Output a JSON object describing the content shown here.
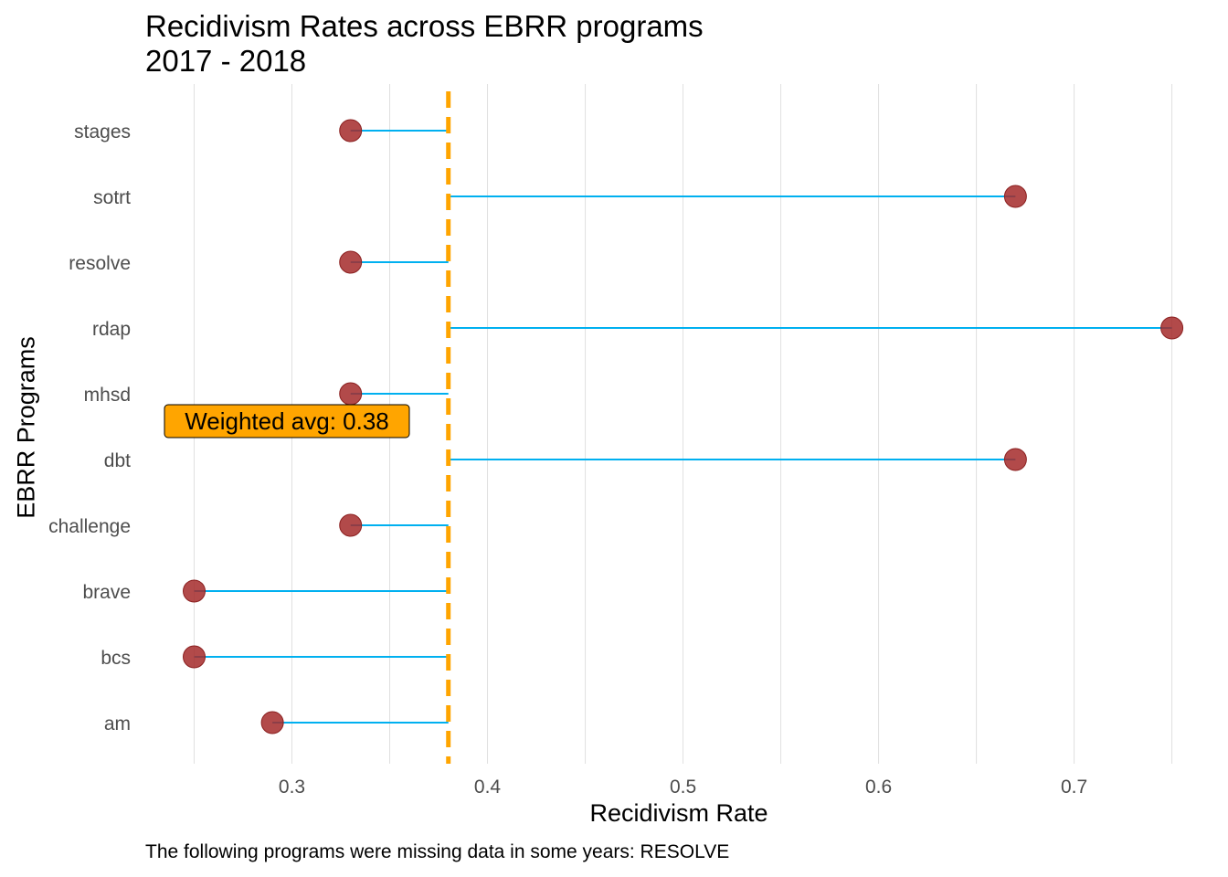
{
  "chart_data": {
    "type": "lollipop",
    "title": "Recidivism Rates across EBRR programs",
    "subtitle": "2017 - 2018",
    "xlabel": "Recidivism Rate",
    "ylabel": "EBRR Programs",
    "caption": "The following programs were missing data in some years: RESOLVE",
    "xlim": [
      0.225,
      0.76
    ],
    "x_ticks": [
      0.3,
      0.4,
      0.5,
      0.6,
      0.7
    ],
    "x_tick_labels": [
      "0.3",
      "0.4",
      "0.5",
      "0.6",
      "0.7"
    ],
    "grid": true,
    "reference_line": {
      "value": 0.38,
      "style": "dashed",
      "color": "#FFA500"
    },
    "annotation": {
      "text": "Weighted avg: 0.38",
      "fill": "#FFA500"
    },
    "categories": [
      "stages",
      "sotrt",
      "resolve",
      "rdap",
      "mhsd",
      "dbt",
      "challenge",
      "brave",
      "bcs",
      "am"
    ],
    "values": [
      0.33,
      0.67,
      0.33,
      0.75,
      0.33,
      0.67,
      0.33,
      0.25,
      0.25,
      0.29
    ],
    "colors": {
      "segment": "#00B0F0",
      "point": "#A52A2A",
      "grid": "#E0E0E0",
      "axis_text": "#4D4D4D"
    }
  }
}
